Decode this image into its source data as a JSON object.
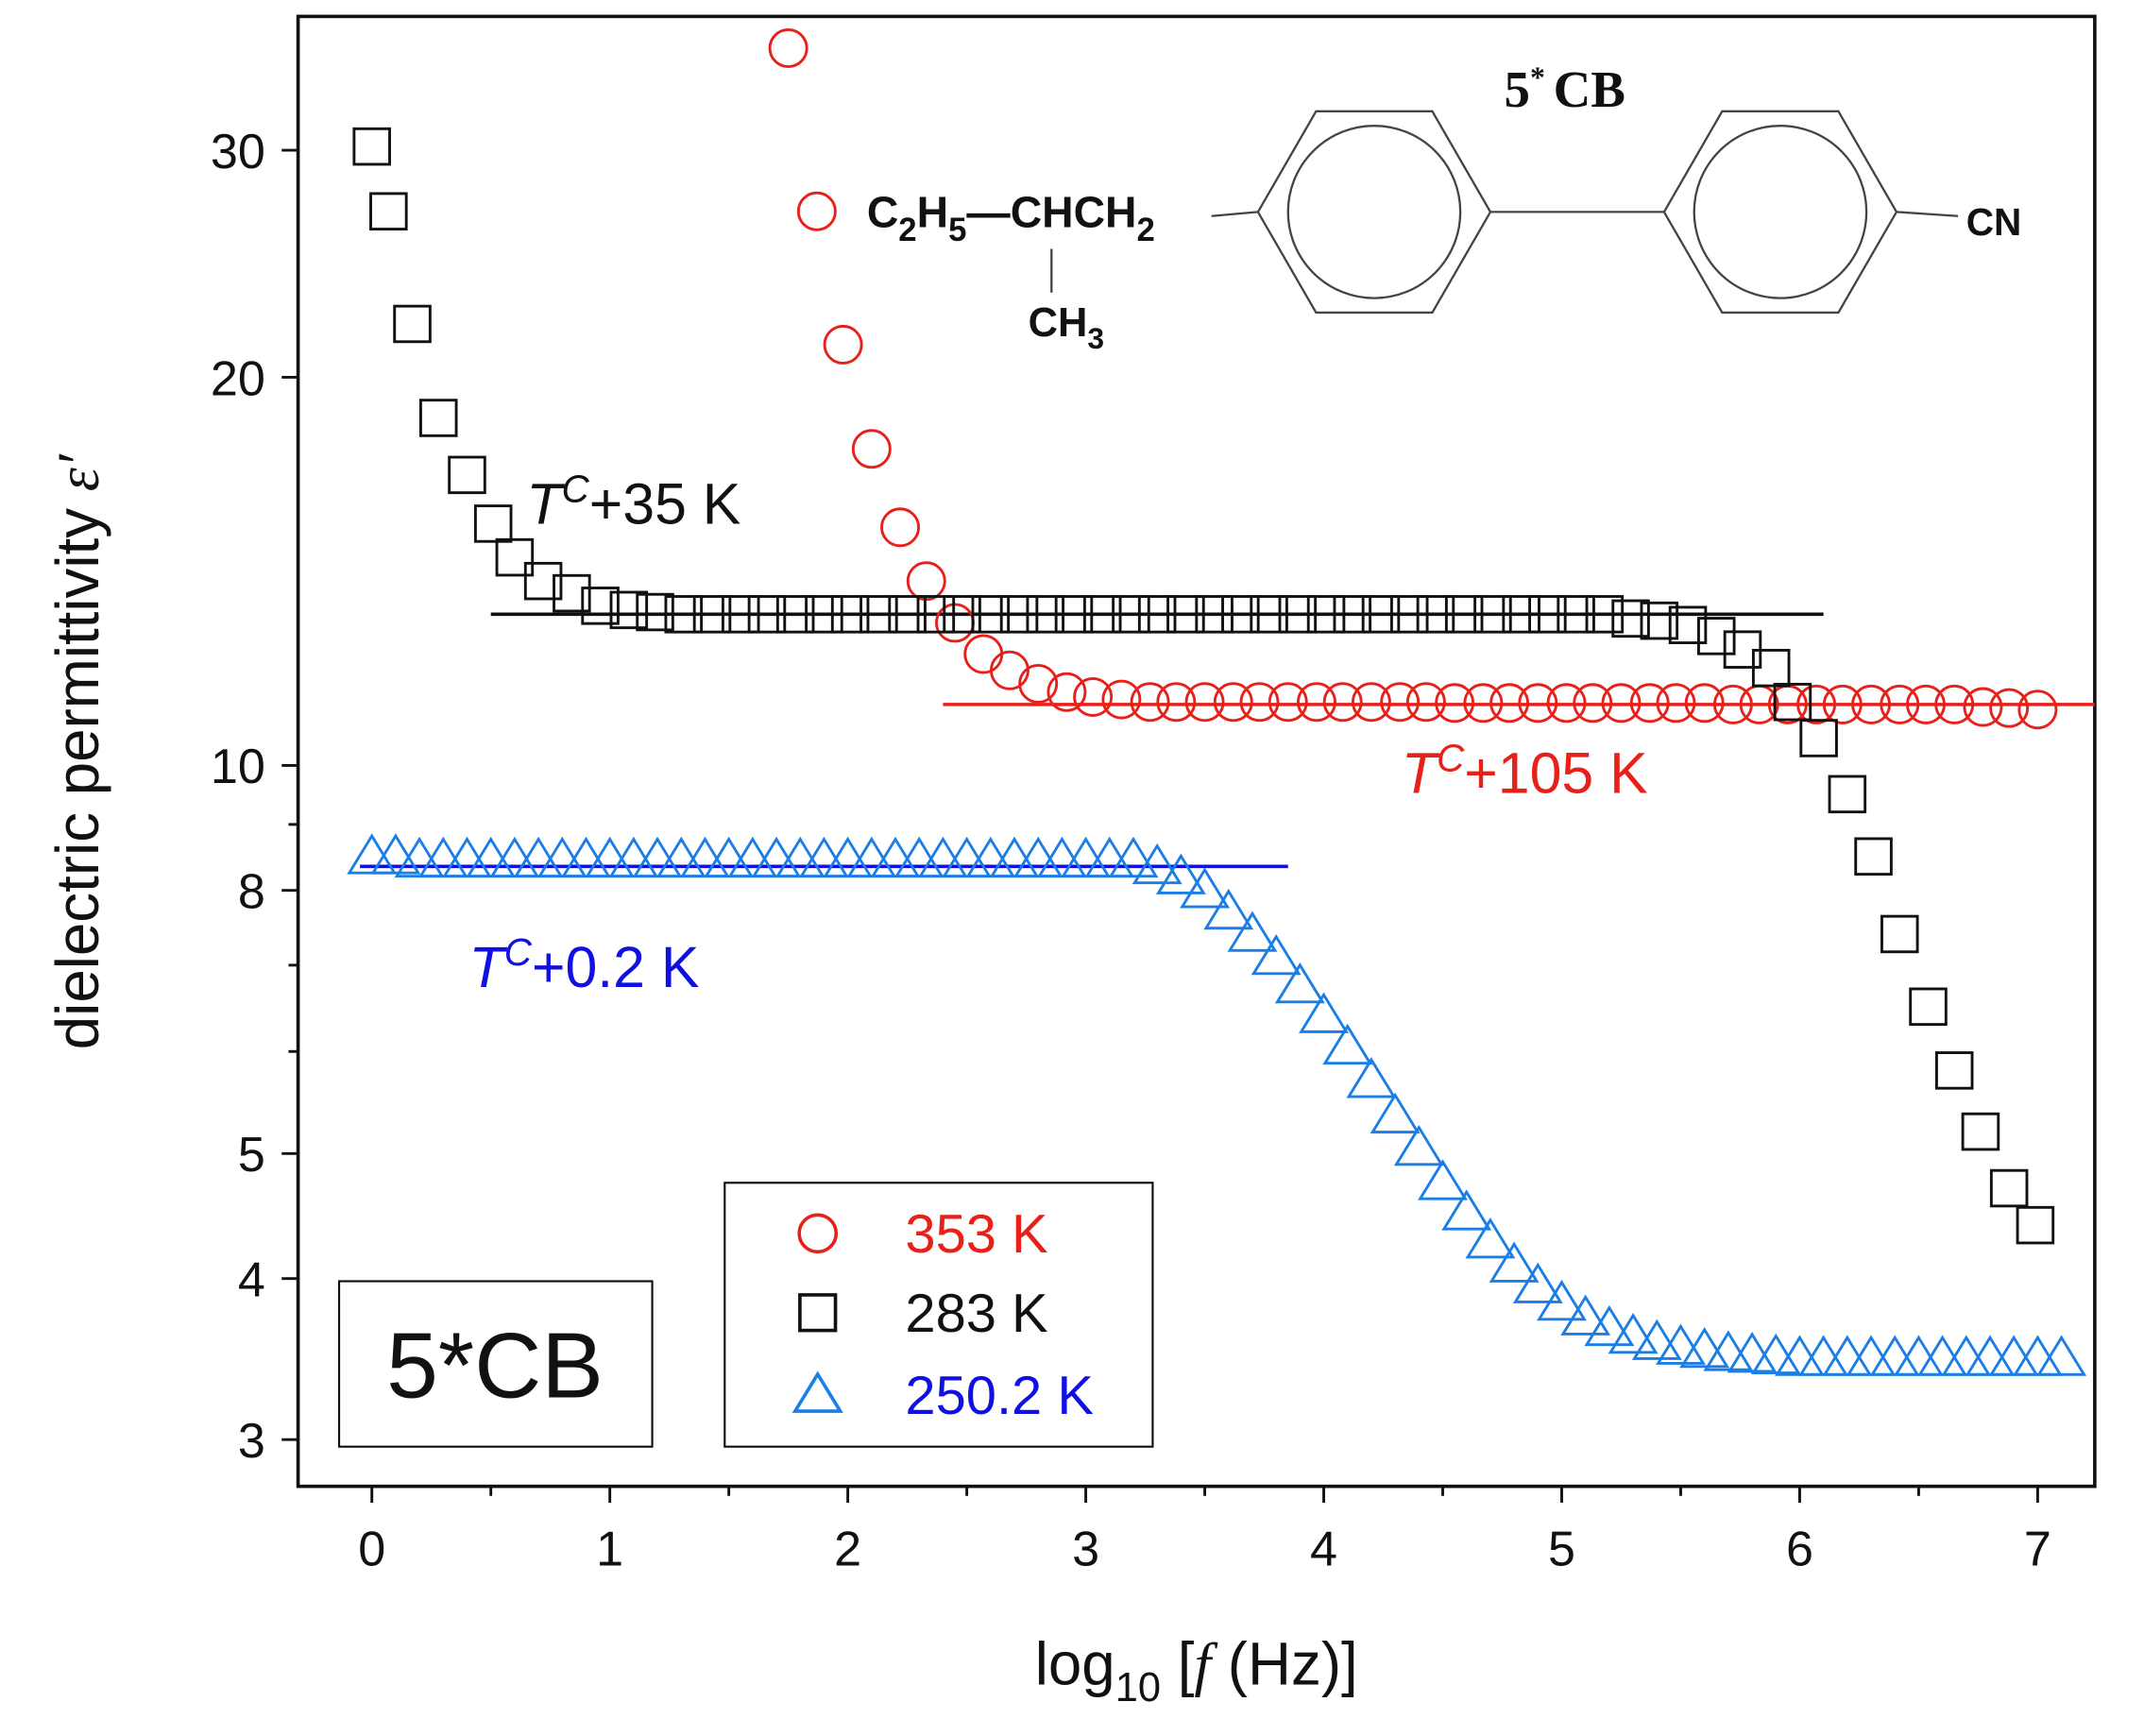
{
  "chart_data": {
    "type": "scatter",
    "x_label_parts": [
      "log",
      "10",
      " [",
      "f",
      " (Hz)]"
    ],
    "y_label_parts": [
      "dielectric permittivity ",
      "ε′"
    ],
    "xlim": [
      -0.31,
      7.24
    ],
    "ylim": [
      2.76,
      38.1
    ],
    "log_y": true,
    "xticks": [
      0,
      1,
      2,
      3,
      4,
      5,
      6,
      7
    ],
    "xminorticks": [
      0.5,
      1.5,
      2.5,
      3.5,
      4.5,
      5.5,
      6.5
    ],
    "yticks": [
      3,
      4,
      5,
      8,
      10,
      20,
      30
    ],
    "yminorticks": [
      6,
      7,
      9
    ],
    "series": [
      {
        "name": "353 K",
        "color": "#e8201a",
        "label_color": "#e8201a",
        "marker": "circle",
        "x": [
          1.75,
          1.87,
          1.98,
          2.1,
          2.22,
          2.33,
          2.45,
          2.57,
          2.68,
          2.8,
          2.92,
          3.03,
          3.15,
          3.27,
          3.38,
          3.5,
          3.62,
          3.73,
          3.85,
          3.97,
          4.08,
          4.2,
          4.32,
          4.43,
          4.55,
          4.67,
          4.78,
          4.9,
          5.02,
          5.13,
          5.25,
          5.37,
          5.48,
          5.6,
          5.72,
          5.83,
          5.95,
          6.07,
          6.18,
          6.3,
          6.42,
          6.53,
          6.65,
          6.77,
          6.88,
          7.0
        ],
        "values": [
          36,
          26.9,
          21.2,
          17.6,
          15.3,
          13.9,
          12.9,
          12.2,
          11.85,
          11.57,
          11.4,
          11.3,
          11.25,
          11.2,
          11.2,
          11.2,
          11.2,
          11.2,
          11.2,
          11.2,
          11.2,
          11.2,
          11.2,
          11.2,
          11.18,
          11.18,
          11.18,
          11.18,
          11.18,
          11.18,
          11.18,
          11.18,
          11.18,
          11.18,
          11.15,
          11.15,
          11.15,
          11.15,
          11.15,
          11.15,
          11.15,
          11.15,
          11.15,
          11.1,
          11.08,
          11.05
        ]
      },
      {
        "name": "283 K",
        "color": "#111111",
        "label_color": "#111111",
        "marker": "square",
        "x": [
          0,
          0.07,
          0.17,
          0.28,
          0.4,
          0.51,
          0.6,
          0.72,
          0.84,
          0.96,
          1.08,
          1.19,
          1.31,
          1.43,
          1.55,
          1.66,
          1.78,
          1.9,
          2.01,
          2.13,
          2.25,
          2.37,
          2.48,
          2.6,
          2.72,
          2.83,
          2.95,
          3.07,
          3.19,
          3.3,
          3.42,
          3.54,
          3.65,
          3.77,
          3.89,
          4.01,
          4.12,
          4.24,
          4.36,
          4.47,
          4.59,
          4.71,
          4.83,
          4.94,
          5.06,
          5.18,
          5.29,
          5.41,
          5.53,
          5.65,
          5.76,
          5.88,
          5.97,
          6.08,
          6.2,
          6.31,
          6.42,
          6.54,
          6.65,
          6.76,
          6.88,
          6.99
        ],
        "values": [
          30.2,
          26.9,
          22.0,
          18.6,
          16.8,
          15.4,
          14.5,
          13.9,
          13.6,
          13.3,
          13.2,
          13.15,
          13.1,
          13.1,
          13.1,
          13.1,
          13.1,
          13.1,
          13.1,
          13.1,
          13.1,
          13.1,
          13.1,
          13.1,
          13.1,
          13.1,
          13.1,
          13.1,
          13.1,
          13.1,
          13.1,
          13.1,
          13.1,
          13.1,
          13.1,
          13.1,
          13.1,
          13.1,
          13.1,
          13.1,
          13.1,
          13.1,
          13.1,
          13.1,
          13.1,
          13.1,
          13.0,
          12.95,
          12.85,
          12.6,
          12.3,
          11.9,
          11.2,
          10.5,
          9.5,
          8.5,
          7.4,
          6.5,
          5.8,
          5.2,
          4.7,
          4.4
        ]
      },
      {
        "name": "250.2 K",
        "color": "#1a7ee6",
        "label_color": "#1010e0",
        "marker": "triangle",
        "x": [
          0,
          0.1,
          0.2,
          0.3,
          0.4,
          0.5,
          0.6,
          0.7,
          0.8,
          0.9,
          1.0,
          1.1,
          1.2,
          1.3,
          1.4,
          1.5,
          1.6,
          1.7,
          1.8,
          1.9,
          2.0,
          2.1,
          2.2,
          2.3,
          2.4,
          2.5,
          2.6,
          2.7,
          2.8,
          2.9,
          3.0,
          3.1,
          3.2,
          3.3,
          3.4,
          3.5,
          3.6,
          3.7,
          3.8,
          3.9,
          4.0,
          4.1,
          4.2,
          4.3,
          4.4,
          4.5,
          4.6,
          4.7,
          4.8,
          4.9,
          5.0,
          5.1,
          5.2,
          5.3,
          5.4,
          5.5,
          5.6,
          5.7,
          5.8,
          5.9,
          6.0,
          6.1,
          6.2,
          6.3,
          6.4,
          6.5,
          6.6,
          6.7,
          6.8,
          6.9,
          7.0,
          7.1
        ],
        "values": [
          8.5,
          8.5,
          8.45,
          8.45,
          8.45,
          8.45,
          8.45,
          8.45,
          8.45,
          8.45,
          8.45,
          8.45,
          8.45,
          8.45,
          8.45,
          8.45,
          8.45,
          8.45,
          8.45,
          8.45,
          8.45,
          8.45,
          8.45,
          8.45,
          8.45,
          8.45,
          8.45,
          8.45,
          8.45,
          8.45,
          8.45,
          8.45,
          8.45,
          8.35,
          8.2,
          8.0,
          7.7,
          7.4,
          7.1,
          6.75,
          6.4,
          6.05,
          5.7,
          5.35,
          5.05,
          4.75,
          4.5,
          4.28,
          4.1,
          3.95,
          3.83,
          3.73,
          3.66,
          3.61,
          3.57,
          3.54,
          3.52,
          3.5,
          3.49,
          3.48,
          3.47,
          3.47,
          3.47,
          3.47,
          3.47,
          3.47,
          3.47,
          3.47,
          3.47,
          3.47,
          3.47,
          3.47
        ]
      }
    ],
    "reference_lines": [
      {
        "color": "#e8201a",
        "x": [
          2.4,
          7.24
        ],
        "values": [
          11.15,
          11.15
        ]
      },
      {
        "color": "#111111",
        "x": [
          0.5,
          6.1
        ],
        "values": [
          13.1,
          13.1
        ]
      },
      {
        "color": "#1010e0",
        "x": [
          -0.05,
          3.85
        ],
        "values": [
          8.35,
          8.35
        ]
      }
    ],
    "annotations": [
      {
        "parts": [
          "T",
          "C",
          "+35 K"
        ],
        "color": "#111111"
      },
      {
        "parts": [
          "T",
          "C",
          "+105 K"
        ],
        "color": "#e8201a"
      },
      {
        "parts": [
          "T",
          "C",
          "+0.2 K"
        ],
        "color": "#1010e0"
      }
    ],
    "box_label": "5*CB",
    "inset": {
      "title_parts": [
        "5",
        "*",
        "CB"
      ],
      "substituent_parts": [
        "C",
        "2",
        "H",
        "5",
        "—CHCH",
        "2"
      ],
      "methyl_parts": [
        "CH",
        "3"
      ],
      "group": "CN"
    }
  }
}
